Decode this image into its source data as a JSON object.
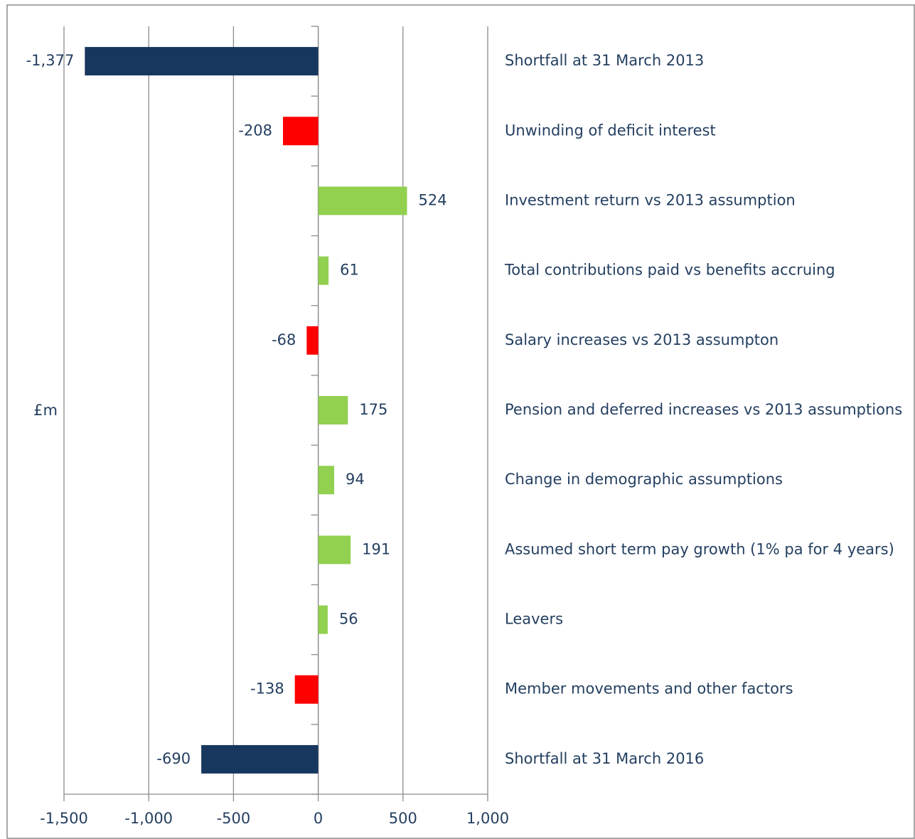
{
  "chart_data": {
    "type": "bar",
    "orientation": "horizontal",
    "axis_label": "£m",
    "categories": [
      "Shortfall at 31 March 2013",
      "Unwinding of deficit interest",
      "Investment return vs 2013 assumption",
      "Total contributions paid vs benefits accruing",
      "Salary increases vs 2013 assumpton",
      "Pension and deferred increases vs 2013 assumptions",
      "Change in demographic assumptions",
      "Assumed short term pay growth (1% pa for 4 years)",
      "Leavers",
      "Member movements and other factors",
      "Shortfall at 31 March 2016"
    ],
    "values": [
      -1377,
      -208,
      524,
      61,
      -68,
      175,
      94,
      191,
      56,
      -138,
      -690
    ],
    "value_labels": [
      "-1,377",
      "-208",
      "524",
      "61",
      "-68",
      "175",
      "94",
      "191",
      "56",
      "-138",
      "-690"
    ],
    "colors": [
      "#17375e",
      "#ff0000",
      "#92d050",
      "#92d050",
      "#ff0000",
      "#92d050",
      "#92d050",
      "#92d050",
      "#92d050",
      "#ff0000",
      "#17375e"
    ],
    "xlim": [
      -1500,
      1000
    ],
    "xticks": [
      {
        "value": -1500,
        "label": "-1,500"
      },
      {
        "value": -1000,
        "label": "-1,000"
      },
      -500,
      0,
      500,
      {
        "value": 1000,
        "label": "1,000"
      }
    ],
    "grid": true
  }
}
